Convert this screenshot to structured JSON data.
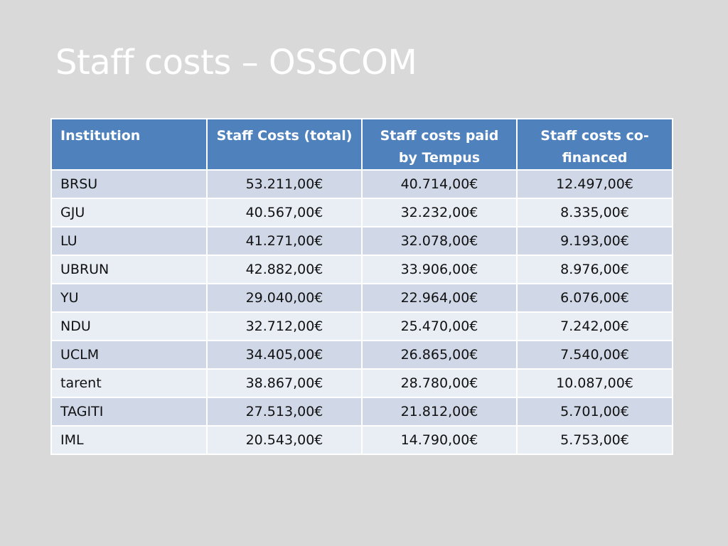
{
  "title": "Staff costs – OSSCOM",
  "table": {
    "headers": [
      "Institution",
      "Staff Costs (total)",
      "Staff costs paid by Tempus",
      "Staff costs co-financed"
    ],
    "rows": [
      [
        "BRSU",
        "53.211,00€",
        "40.714,00€",
        "12.497,00€"
      ],
      [
        "GJU",
        "40.567,00€",
        "32.232,00€",
        "8.335,00€"
      ],
      [
        "LU",
        "41.271,00€",
        "32.078,00€",
        "9.193,00€"
      ],
      [
        "UBRUN",
        "42.882,00€",
        "33.906,00€",
        "8.976,00€"
      ],
      [
        "YU",
        "29.040,00€",
        "22.964,00€",
        "6.076,00€"
      ],
      [
        "NDU",
        "32.712,00€",
        "25.470,00€",
        "7.242,00€"
      ],
      [
        "UCLM",
        "34.405,00€",
        "26.865,00€",
        "7.540,00€"
      ],
      [
        "tarent",
        "38.867,00€",
        "28.780,00€",
        "10.087,00€"
      ],
      [
        "TAGITI",
        "27.513,00€",
        "21.812,00€",
        "5.701,00€"
      ],
      [
        "IML",
        "20.543,00€",
        "14.790,00€",
        "5.753,00€"
      ]
    ]
  },
  "colors": {
    "background": "#d9d9d9",
    "header": "#4f81bd",
    "row_odd": "#d0d8e8",
    "row_even": "#e9edf4",
    "title_text": "#ffffff"
  }
}
